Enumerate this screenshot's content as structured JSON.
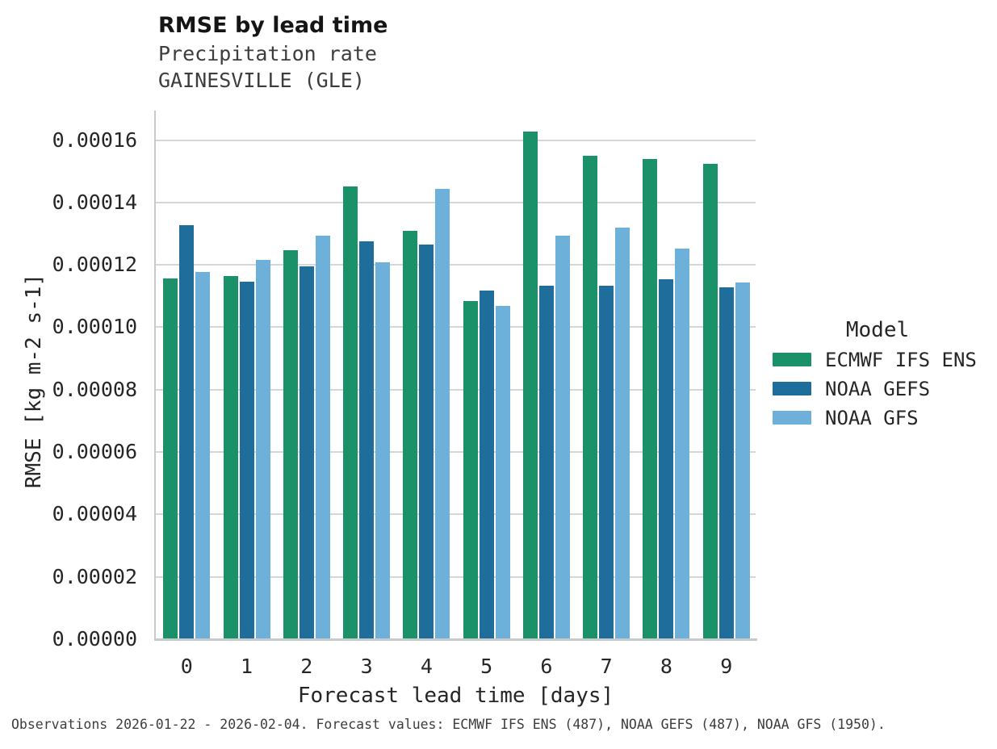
{
  "header": {
    "title": "RMSE by lead time",
    "subtitle_variable": "Precipitation rate",
    "subtitle_station": "GAINESVILLE (GLE)"
  },
  "legend": {
    "title": "Model"
  },
  "caption": "Observations 2026-01-22 - 2026-02-04. Forecast values: ECMWF IFS ENS (487), NOAA GEFS (487), NOAA GFS (1950).",
  "colors": {
    "grid": "#d6d6d6",
    "axis_spine": "#c6cacd",
    "title_text": "#151515",
    "tick_text": "#262626",
    "subtitle_text": "#3d3d3d"
  },
  "chart_data": {
    "type": "bar",
    "title": "RMSE by lead time",
    "subtitle": [
      "Precipitation rate",
      "GAINESVILLE (GLE)"
    ],
    "xlabel": "Forecast lead time [days]",
    "ylabel": "RMSE [kg m-2 s-1]",
    "categories": [
      "0",
      "1",
      "2",
      "3",
      "4",
      "5",
      "6",
      "7",
      "8",
      "9"
    ],
    "ylim": [
      0,
      0.00017
    ],
    "ytick_values": [
      0,
      2e-05,
      4e-05,
      6e-05,
      8e-05,
      0.0001,
      0.00012,
      0.00014,
      0.00016
    ],
    "ytick_labels": [
      "0.00000",
      "0.00002",
      "0.00004",
      "0.00006",
      "0.00008",
      "0.00010",
      "0.00012",
      "0.00014",
      "0.00016"
    ],
    "grid": "horizontal",
    "legend_title": "Model",
    "legend_position": "right",
    "series": [
      {
        "name": "ECMWF IFS ENS",
        "color": "#1b9169",
        "values": [
          0.0001156,
          0.0001165,
          0.0001247,
          0.000145,
          0.000131,
          0.0001085,
          0.0001627,
          0.0001549,
          0.000154,
          0.0001525
        ]
      },
      {
        "name": "NOAA GEFS",
        "color": "#1e6d9b",
        "values": [
          0.0001327,
          0.0001147,
          0.0001194,
          0.0001275,
          0.0001266,
          0.0001118,
          0.0001133,
          0.0001133,
          0.0001153,
          0.0001128
        ]
      },
      {
        "name": "NOAA GFS",
        "color": "#6db0d9",
        "values": [
          0.0001178,
          0.0001216,
          0.0001294,
          0.0001208,
          0.0001443,
          0.0001069,
          0.0001294,
          0.0001319,
          0.0001251,
          0.0001143
        ]
      }
    ]
  }
}
